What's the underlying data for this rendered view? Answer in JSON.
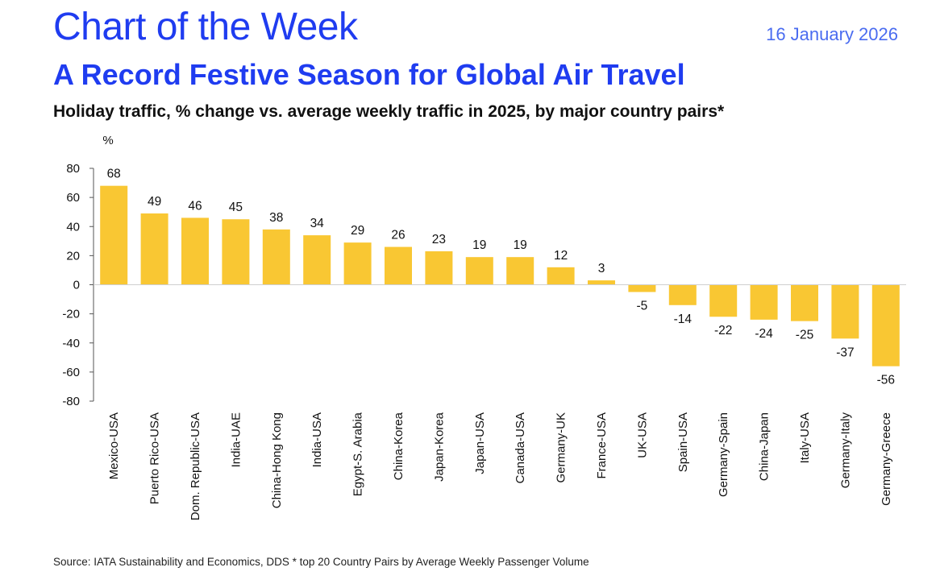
{
  "header": {
    "series_title": "Chart of the Week",
    "date": "16 January 2026",
    "headline": "A Record Festive Season for Global Air Travel",
    "subtitle": "Holiday traffic, % change vs. average weekly traffic in 2025, by major country pairs*"
  },
  "footer": {
    "source": "Source: IATA Sustainability and Economics, DDS * top 20 Country Pairs by Average Weekly Passenger Volume"
  },
  "colors": {
    "bar": "#f9c733",
    "title": "#1f3cf0",
    "axis": "#555555"
  },
  "chart_data": {
    "type": "bar",
    "title": "Holiday traffic, % change vs. average weekly traffic in 2025, by major country pairs*",
    "ylabel": "%",
    "xlabel": "",
    "ylim": [
      -80,
      80
    ],
    "yticks": [
      80,
      60,
      40,
      20,
      0,
      -20,
      -40,
      -60,
      -80
    ],
    "grid": false,
    "categories": [
      "Mexico-USA",
      "Puerto Rico-USA",
      "Dom. Republic-USA",
      "India-UAE",
      "China-Hong Kong",
      "India-USA",
      "Egypt-S. Arabia",
      "China-Korea",
      "Japan-Korea",
      "Japan-USA",
      "Canada-USA",
      "Germany-UK",
      "France-USA",
      "UK-USA",
      "Spain-USA",
      "Germany-Spain",
      "China-Japan",
      "Italy-USA",
      "Germany-Italy",
      "Germany-Greece"
    ],
    "values": [
      68,
      49,
      46,
      45,
      38,
      34,
      29,
      26,
      23,
      19,
      19,
      12,
      3,
      -5,
      -14,
      -22,
      -24,
      -25,
      -37,
      -56
    ]
  }
}
